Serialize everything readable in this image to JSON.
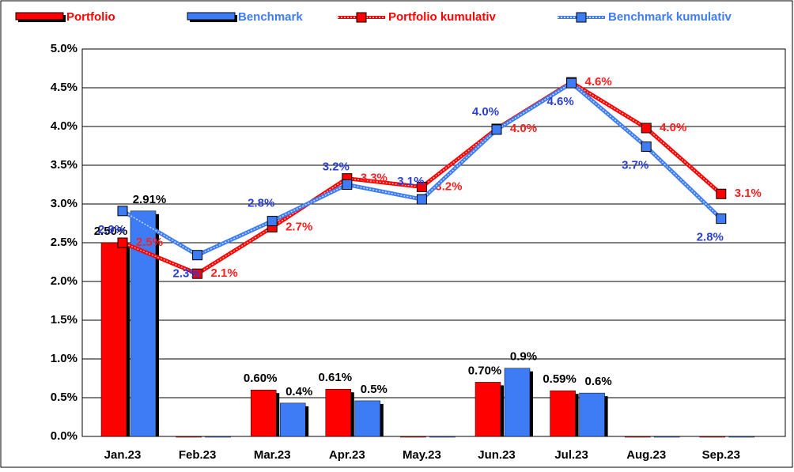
{
  "chart_data": {
    "type": "bar_line",
    "categories": [
      "Jan.23",
      "Feb.23",
      "Mar.23",
      "Apr.23",
      "May.23",
      "Jun.23",
      "Jul.23",
      "Aug.23",
      "Sep.23"
    ],
    "series": [
      {
        "name": "Portfolio",
        "color": "#ff0000",
        "kind": "bar",
        "values": [
          2.5,
          0,
          0.6,
          0.61,
          0,
          0.7,
          0.59,
          0,
          0
        ],
        "value_labels": [
          "2.50%",
          null,
          "0.60%",
          "0.61%",
          null,
          "0.70%",
          "0.59%",
          null,
          null
        ]
      },
      {
        "name": "Benchmark",
        "color": "#3d7cf5",
        "kind": "bar",
        "values": [
          2.91,
          0,
          0.43,
          0.46,
          0,
          0.88,
          0.56,
          0,
          0
        ],
        "value_labels": [
          "2.91%",
          null,
          "0.4%",
          "0.5%",
          null,
          "0.9%",
          "0.6%",
          null,
          null
        ]
      },
      {
        "name": "Portfolio kumulativ",
        "color": "#ff0000",
        "kind": "line",
        "values": [
          2.5,
          2.1,
          2.7,
          3.33,
          3.22,
          3.97,
          4.57,
          3.98,
          3.13
        ],
        "value_labels": [
          "2.5%",
          "2.1%",
          "2.7%",
          "3.3%",
          "3.2%",
          "4.0%",
          "4.6%",
          "4.0%",
          "3.1%"
        ]
      },
      {
        "name": "Benchmark kumulativ",
        "color": "#3d7cf5",
        "kind": "line",
        "values": [
          2.91,
          2.34,
          2.78,
          3.25,
          3.06,
          3.96,
          4.56,
          3.74,
          2.81
        ],
        "value_labels": [
          "2.9%",
          "2.3%",
          "2.8%",
          "3.2%",
          "3.1%",
          "4.0%",
          "4.6%",
          "3.7%",
          "2.8%"
        ]
      }
    ],
    "ylim": [
      0,
      5
    ],
    "yticks": [
      {
        "value": 0,
        "label": "0.0%"
      },
      {
        "value": 0.5,
        "label": "0.5%"
      },
      {
        "value": 1,
        "label": "1.0%"
      },
      {
        "value": 1.5,
        "label": "1.5%"
      },
      {
        "value": 2,
        "label": "2.0%"
      },
      {
        "value": 2.5,
        "label": "2.5%"
      },
      {
        "value": 3,
        "label": "3.0%"
      },
      {
        "value": 3.5,
        "label": "3.5%"
      },
      {
        "value": 4,
        "label": "4.0%"
      },
      {
        "value": 4.5,
        "label": "4.5%"
      },
      {
        "value": 5,
        "label": "5.0%"
      }
    ],
    "grid": true,
    "legend": "top"
  }
}
